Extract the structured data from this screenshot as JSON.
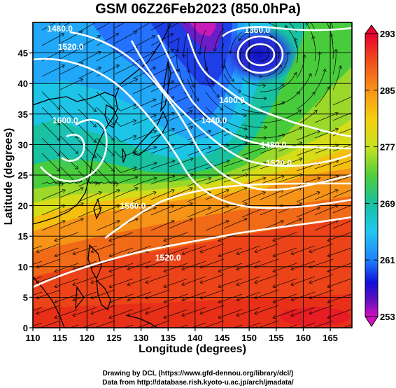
{
  "title": "GSM 06Z26Feb2023 (850.0hPa)",
  "xlabel": "Longitude (degrees)",
  "ylabel": "Latitude (degrees)",
  "credits": [
    "Drawing by DCL (https://www.gfd-dennou.org/library/dcl/)",
    "Data from http://database.rish.kyoto-u.ac.jp/arch/jmadata/"
  ],
  "map": {
    "lon_range": [
      110,
      169
    ],
    "lat_range": [
      0,
      50
    ],
    "x_ticks": [
      "110",
      "115",
      "120",
      "125",
      "130",
      "135",
      "140",
      "145",
      "150",
      "155",
      "160",
      "165"
    ],
    "y_ticks": [
      "0",
      "5",
      "10",
      "15",
      "20",
      "25",
      "30",
      "35",
      "40",
      "45"
    ],
    "grid": true,
    "shading": "temperature (K)",
    "contours": "geopotential height (m)",
    "vectors": "wind streamlines"
  },
  "colorbar": {
    "min": 253,
    "max": 293,
    "labels": [
      "293",
      "285",
      "277",
      "269",
      "261",
      "253"
    ],
    "colors": [
      "#e8002e",
      "#f0501a",
      "#f89218",
      "#f4cf10",
      "#c8e21e",
      "#4fcf3a",
      "#17c0a0",
      "#20c8f0",
      "#2080ff",
      "#1010d8",
      "#6010c0",
      "#d010c0"
    ]
  },
  "contour_labels": [
    {
      "text": "1360.0",
      "lon": 151.5,
      "lat": 48.3
    },
    {
      "text": "1400.0",
      "lon": 146.8,
      "lat": 36.8
    },
    {
      "text": "1440.0",
      "lon": 143.5,
      "lat": 33.5
    },
    {
      "text": "1480.0",
      "lon": 154.5,
      "lat": 29.5
    },
    {
      "text": "1520.0",
      "lon": 155.5,
      "lat": 26.5
    },
    {
      "text": "1480.0",
      "lon": 115.0,
      "lat": 48.5
    },
    {
      "text": "1520.0",
      "lon": 117.0,
      "lat": 45.5
    },
    {
      "text": "1600.0",
      "lon": 116.0,
      "lat": 33.5
    },
    {
      "text": "1560.0",
      "lon": 128.5,
      "lat": 19.5
    },
    {
      "text": "1520.0",
      "lon": 135.0,
      "lat": 11.0
    }
  ]
}
